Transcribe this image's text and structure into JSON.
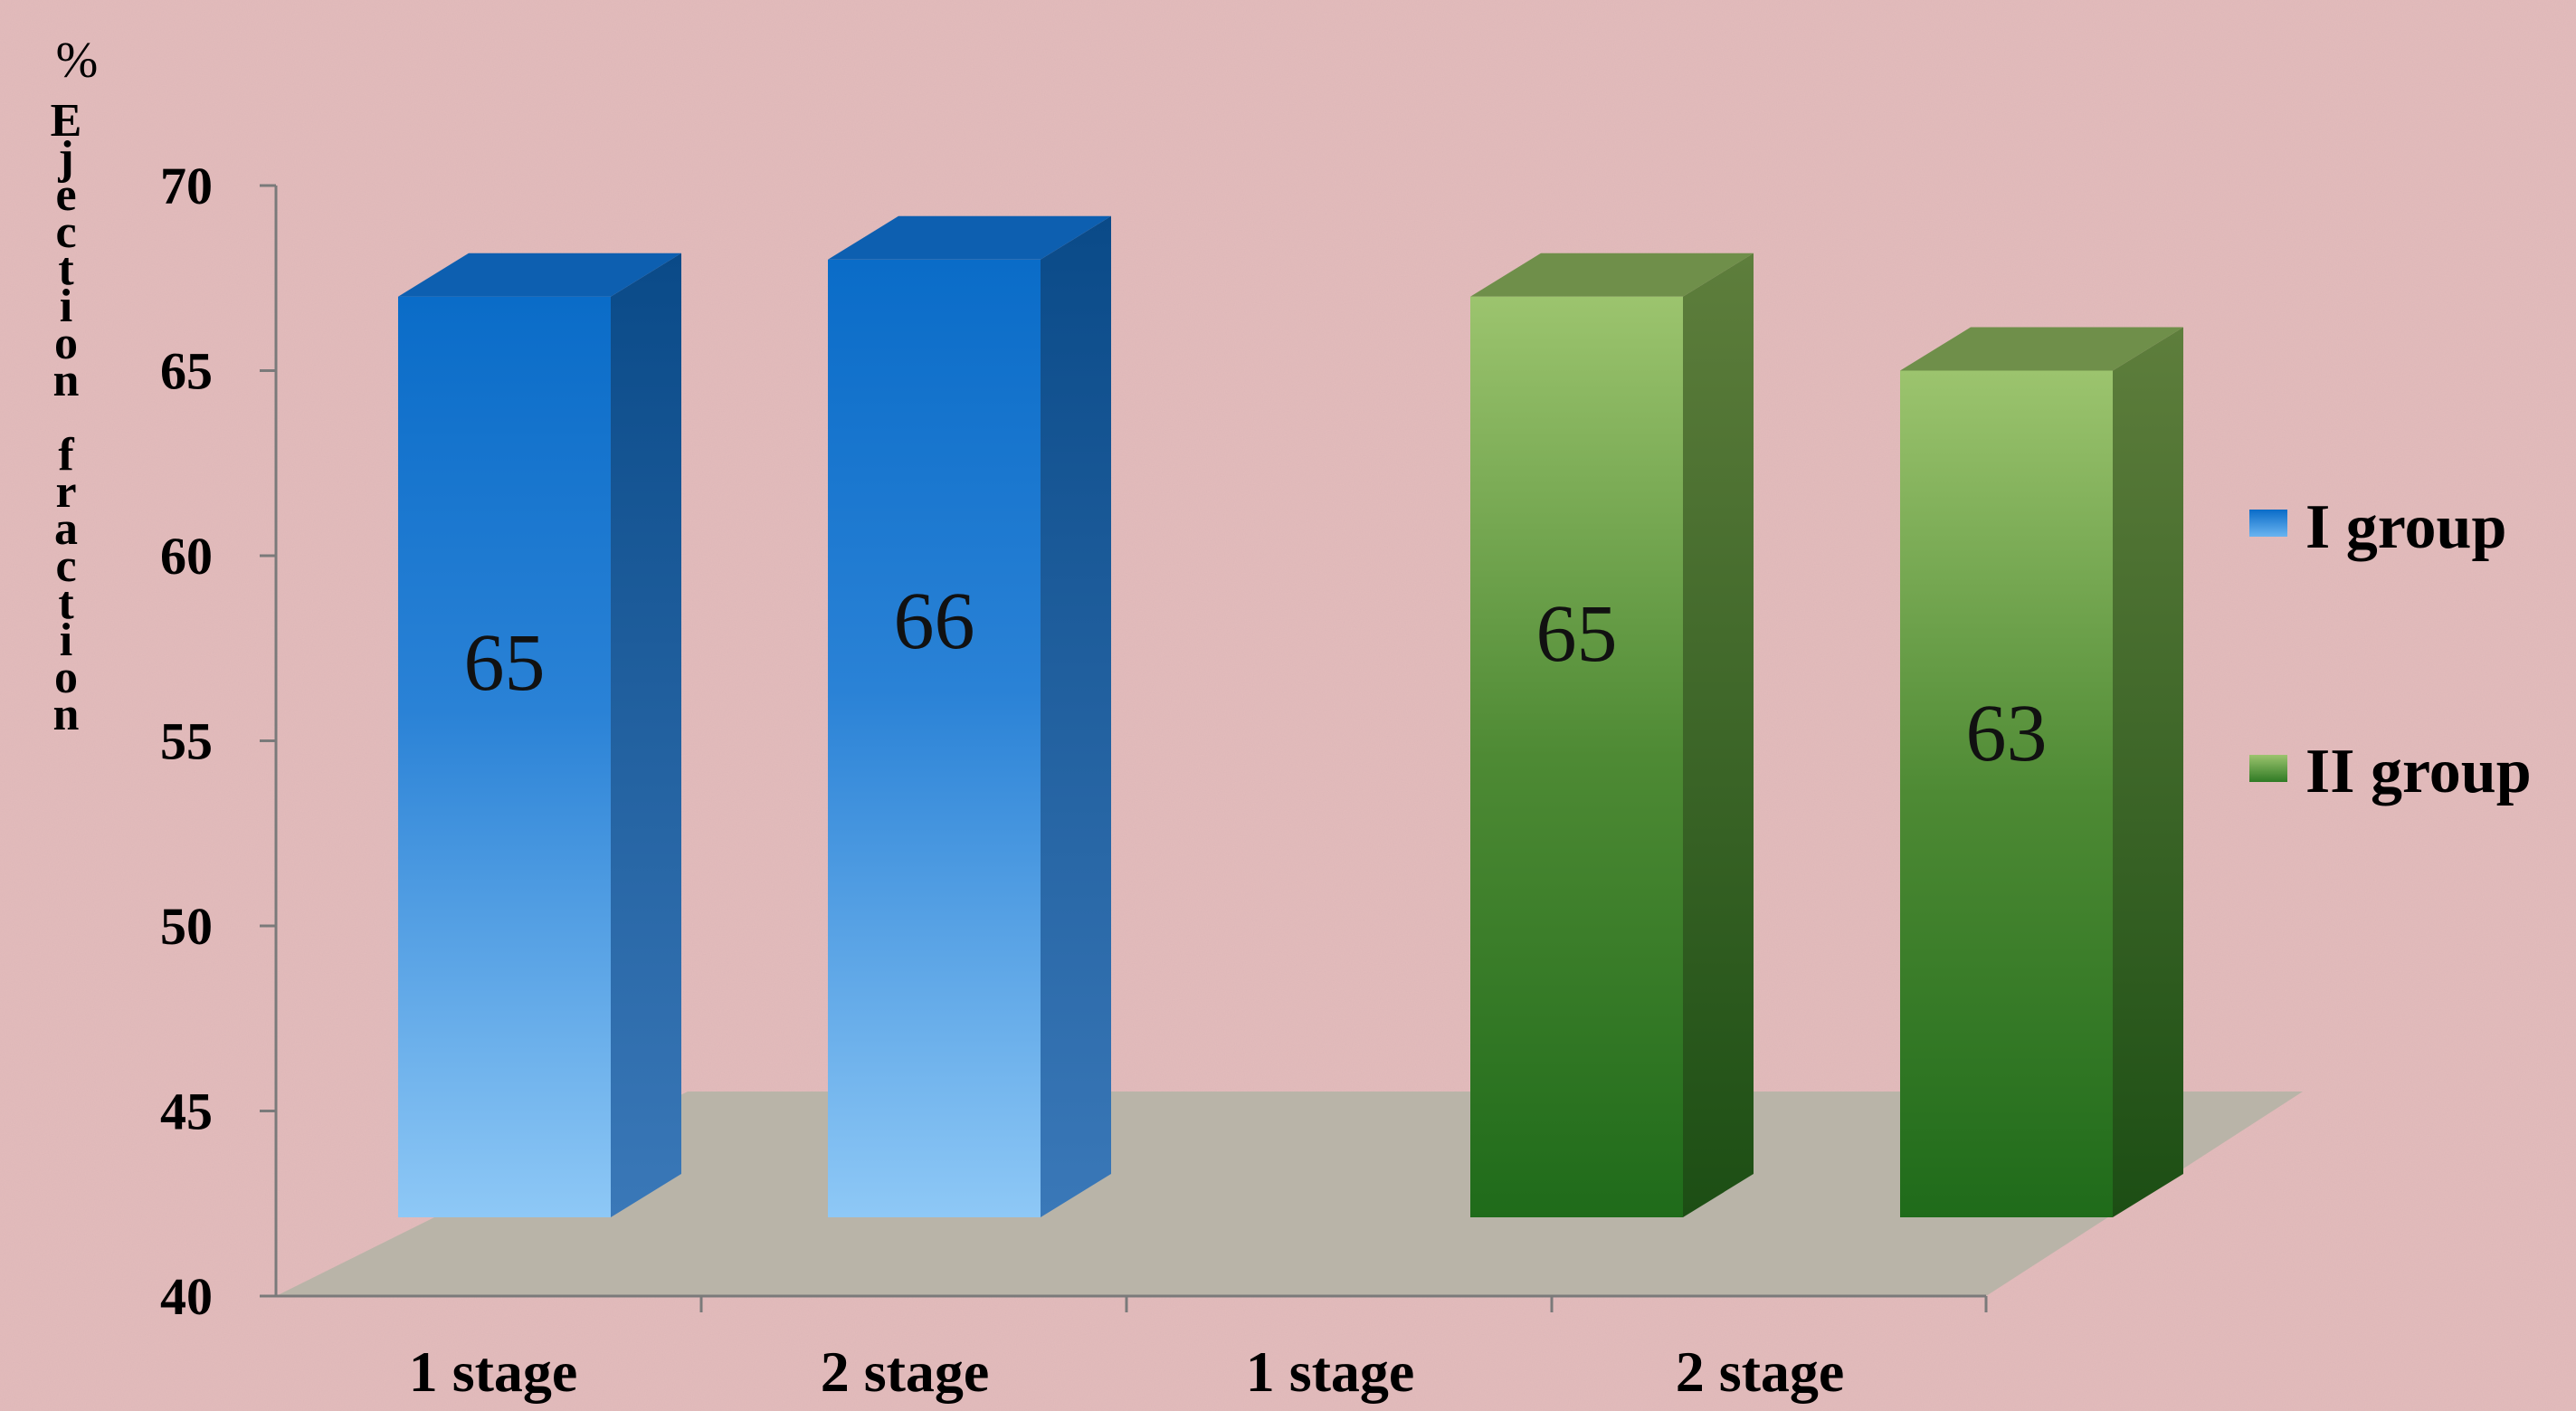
{
  "chart_data": {
    "type": "bar",
    "ylabel_unit": "%",
    "ylabel": "Ejection fraction",
    "ylim": [
      40,
      70
    ],
    "y_ticks": [
      "70",
      "65",
      "60",
      "55",
      "50",
      "45",
      "40"
    ],
    "categories": [
      "1 stage",
      "2 stage",
      "1 stage",
      "2 stage"
    ],
    "bars": [
      {
        "category_index": 0,
        "series": "I group",
        "value": 65,
        "label": "65"
      },
      {
        "category_index": 1,
        "series": "I group",
        "value": 66,
        "label": "66"
      },
      {
        "category_index": 2,
        "series": "II group",
        "value": 65,
        "label": "65"
      },
      {
        "category_index": 3,
        "series": "II group",
        "value": 63,
        "label": "63"
      }
    ],
    "series": [
      {
        "name": "I group",
        "color": "#1a78d0"
      },
      {
        "name": "II group",
        "color": "#5a9a3c"
      }
    ],
    "legend_position": "right",
    "grid": false,
    "style": "3d-column"
  }
}
